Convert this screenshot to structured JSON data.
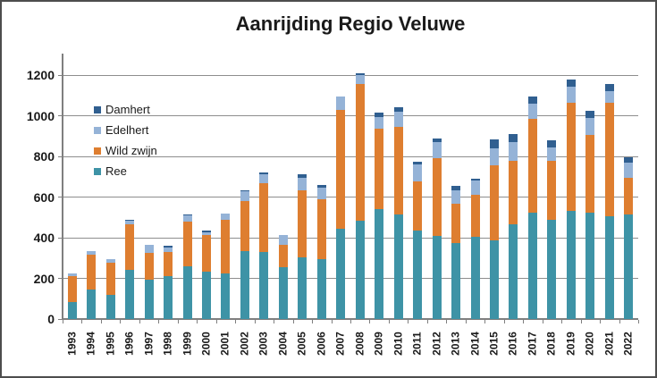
{
  "chart_data": {
    "type": "bar",
    "subtype": "stacked-column",
    "title": "Aanrijding Regio Veluwe",
    "xlabel": "",
    "ylabel": "",
    "categories": [
      "1993",
      "1994",
      "1995",
      "1996",
      "1997",
      "1998",
      "1999",
      "2000",
      "2001",
      "2002",
      "2003",
      "2004",
      "2005",
      "2006",
      "2007",
      "2008",
      "2009",
      "2010",
      "2011",
      "2012",
      "2013",
      "2014",
      "2015",
      "2016",
      "2017",
      "2018",
      "2019",
      "2020",
      "2021",
      "2022"
    ],
    "series": [
      {
        "name": "Ree",
        "color": "#3E93A6",
        "values": [
          85,
          145,
          120,
          240,
          195,
          210,
          260,
          235,
          225,
          335,
          330,
          255,
          305,
          295,
          445,
          485,
          540,
          515,
          435,
          410,
          375,
          405,
          385,
          465,
          525,
          490,
          530,
          525,
          505,
          515
        ]
      },
      {
        "name": "Wild zwijn",
        "color": "#DE7E30",
        "values": [
          125,
          170,
          155,
          225,
          130,
          120,
          220,
          180,
          265,
          245,
          340,
          110,
          330,
          295,
          585,
          670,
          395,
          430,
          240,
          380,
          190,
          205,
          370,
          315,
          460,
          290,
          535,
          380,
          560,
          180
        ]
      },
      {
        "name": "Edelhert",
        "color": "#95B3D7",
        "values": [
          15,
          20,
          20,
          20,
          40,
          20,
          30,
          10,
          30,
          50,
          40,
          50,
          60,
          55,
          65,
          45,
          60,
          75,
          85,
          80,
          70,
          70,
          85,
          90,
          75,
          65,
          80,
          85,
          55,
          75
        ]
      },
      {
        "name": "Damhert",
        "color": "#305F90",
        "values": [
          0,
          0,
          0,
          5,
          0,
          10,
          5,
          10,
          0,
          5,
          10,
          0,
          15,
          15,
          0,
          10,
          20,
          20,
          15,
          20,
          20,
          10,
          45,
          40,
          35,
          35,
          35,
          35,
          35,
          25
        ]
      }
    ],
    "legend_order": [
      "Damhert",
      "Edelhert",
      "Wild zwijn",
      "Ree"
    ],
    "legend_position": "inside-upper-left",
    "y_ticks": [
      0,
      200,
      400,
      600,
      800,
      1000,
      1200
    ],
    "ylim": [
      0,
      1300
    ],
    "grid": true,
    "colors": {
      "gridline": "#8e8e8e",
      "axis": "#7f7f7f",
      "text": "#1a1a1a",
      "frame_border": "#4d4d4d",
      "background": "#ffffff"
    }
  }
}
